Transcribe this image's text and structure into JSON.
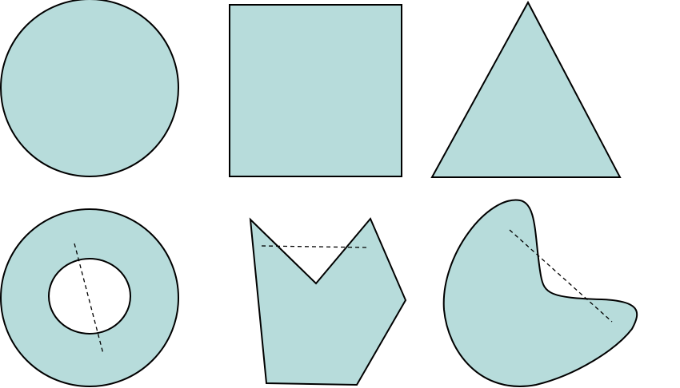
{
  "colors": {
    "fill": "#b7dcdb",
    "stroke": "#000000",
    "hole": "#ffffff"
  },
  "shapes": [
    {
      "kind": "circle",
      "convex": true
    },
    {
      "kind": "square",
      "convex": true
    },
    {
      "kind": "triangle",
      "convex": true
    },
    {
      "kind": "annulus",
      "convex": false,
      "has_dashed_chord": true
    },
    {
      "kind": "notched-polygon",
      "convex": false,
      "has_dashed_chord": true
    },
    {
      "kind": "kidney-blob",
      "convex": false,
      "has_dashed_chord": true
    }
  ]
}
